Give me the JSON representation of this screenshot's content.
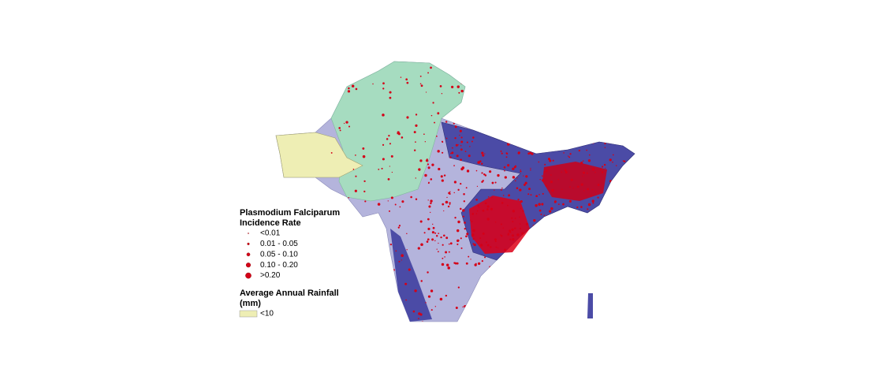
{
  "legend": {
    "incidence": {
      "title": [
        "Plasmodium Falciparum",
        "Incidence Rate"
      ],
      "items": [
        "<0.01",
        "0.01 - 0.05",
        "0.05 - 0.10",
        "0.10 - 0.20",
        ">0.20"
      ]
    },
    "rainfall": {
      "title": [
        "Average Annual Rainfall",
        "(mm)"
      ],
      "items": [
        "<10"
      ]
    }
  }
}
